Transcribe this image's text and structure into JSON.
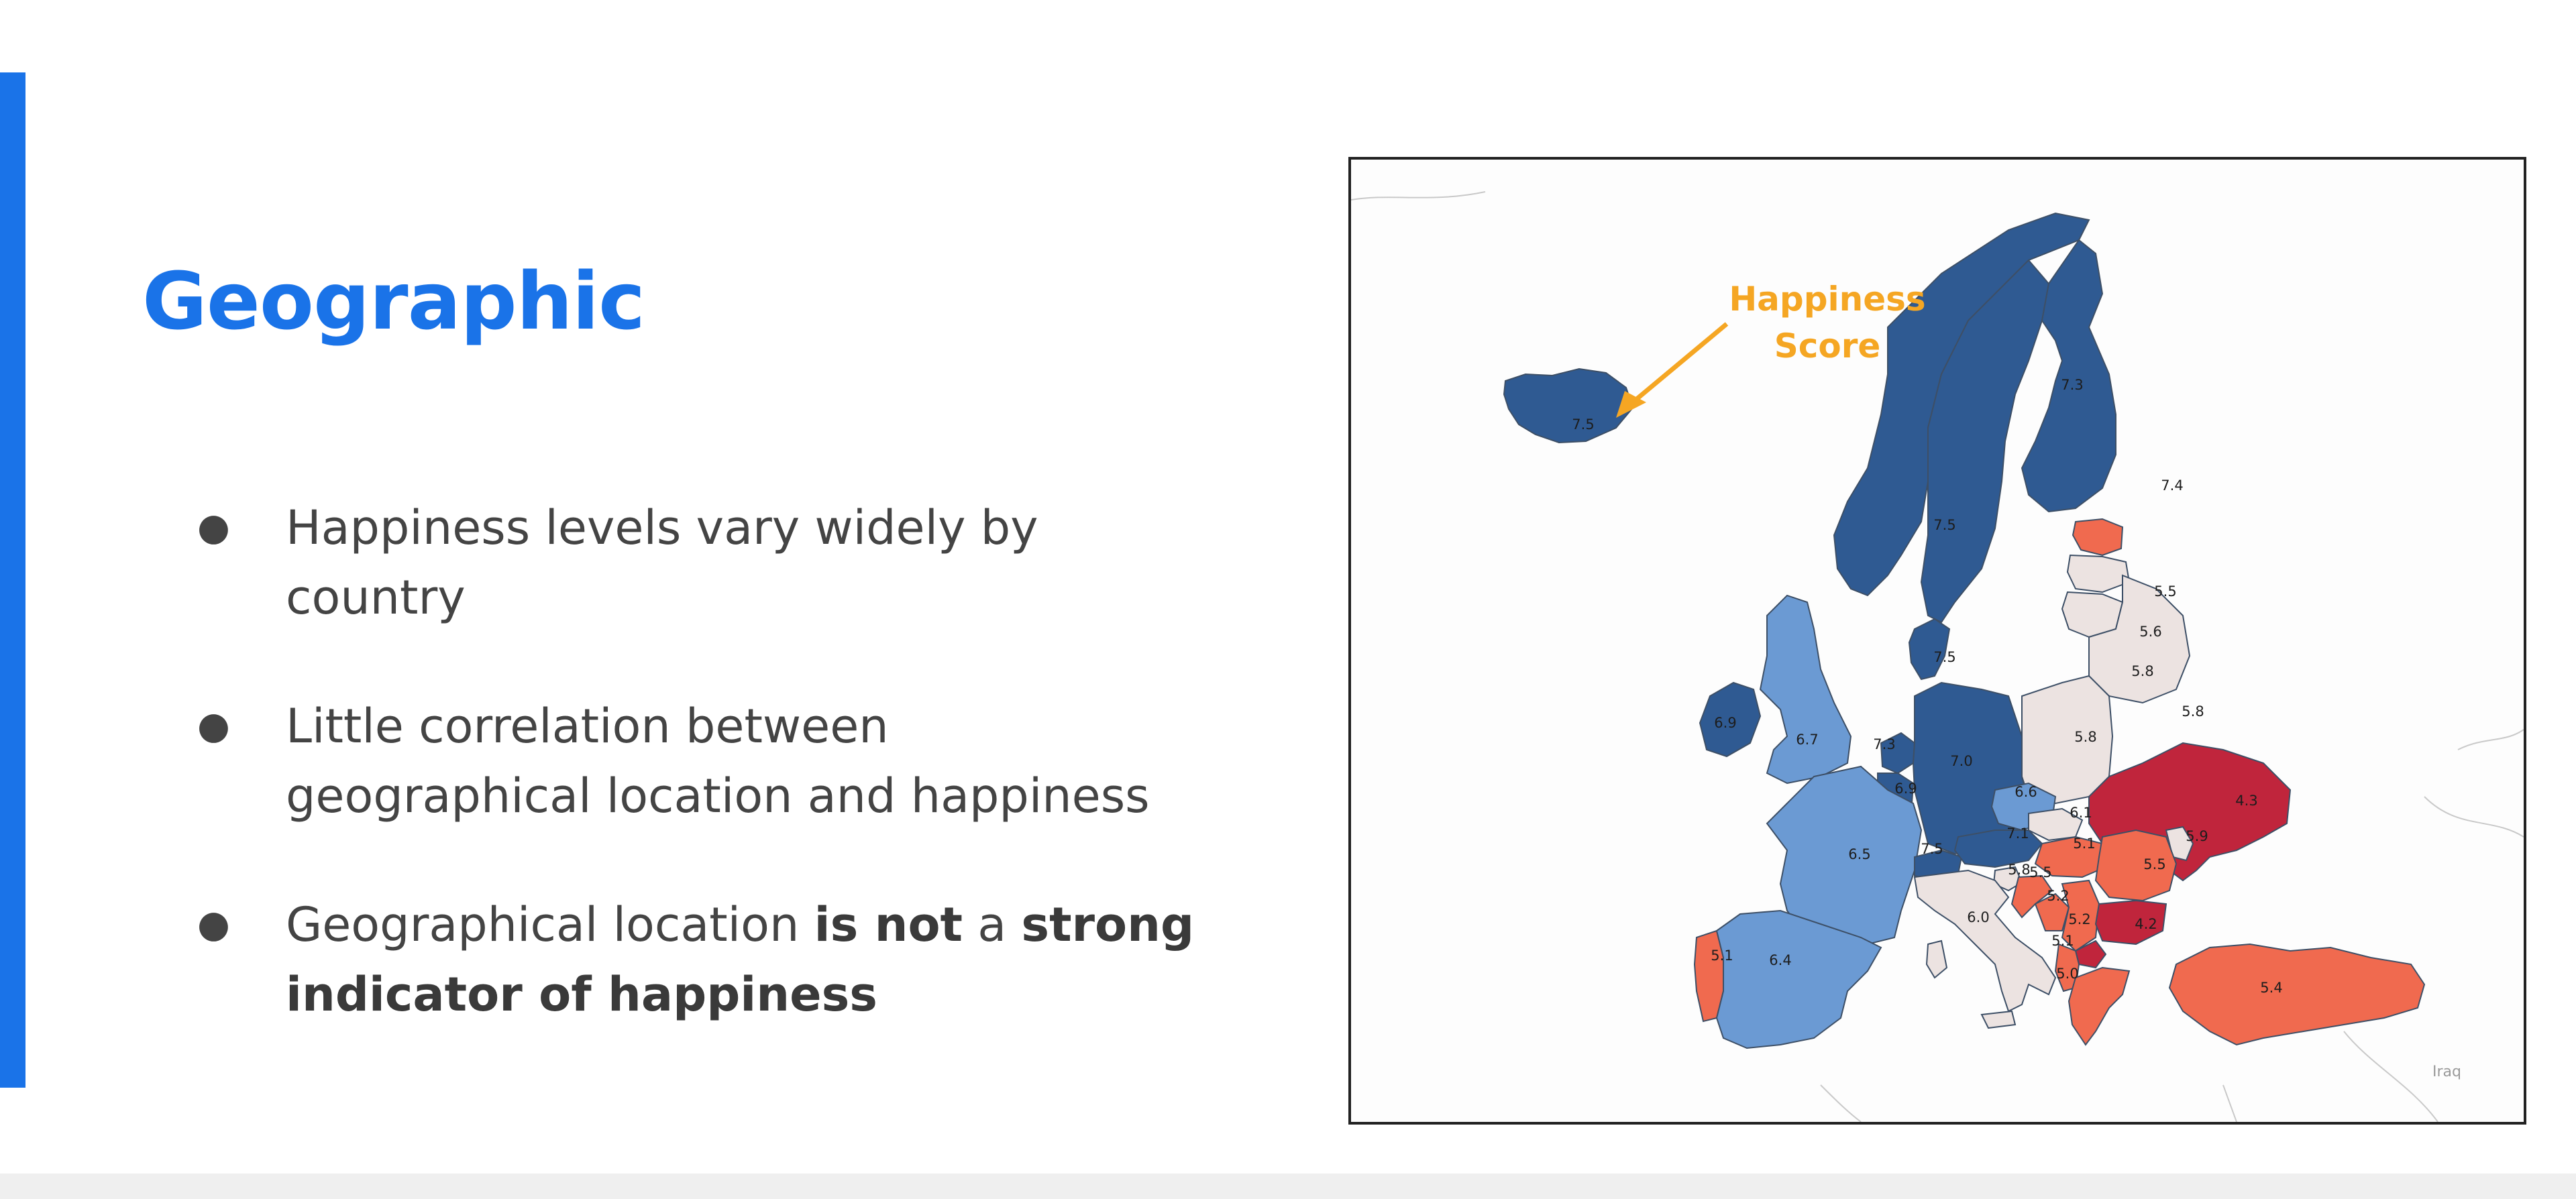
{
  "slide": {
    "title": "Geographic",
    "bullets": [
      {
        "text": "Happiness levels vary widely by country"
      },
      {
        "text": "Little correlation between geographical location and happiness"
      },
      {
        "text_plain": "Geographical location ",
        "text_bold_1": "is not",
        "text_mid": " a ",
        "text_bold_2": "strong indicator of happiness"
      }
    ],
    "bullet_glyph": "●"
  },
  "map": {
    "annotation_line1": "Happiness",
    "annotation_line2": "Score",
    "bg_label_iraq": "Iraq",
    "colors": {
      "dark_blue": "#2f5a92",
      "mid_blue": "#6b9ad3",
      "neutral": "#ece3e1",
      "light_red": "#f06a4f",
      "dark_red": "#c0253c",
      "accent": "#1a73e8",
      "annotation": "#f5a623"
    },
    "scores": {
      "iceland": "7.5",
      "sweden": "7.3",
      "finland": "7.4",
      "norway": "7.5",
      "estonia": "5.5",
      "latvia": "5.6",
      "lithuania": "5.8",
      "belarus": "5.8",
      "denmark": "7.5",
      "ireland": "6.9",
      "uk": "6.7",
      "netherlands": "7.3",
      "germany": "7.0",
      "poland": "5.8",
      "belgium": "6.9",
      "czechia": "6.6",
      "ukraine": "4.3",
      "france": "6.5",
      "switzerland": "7.5",
      "austria": "7.1",
      "slovakia": "6.1",
      "moldova": "5.9",
      "hungary": "5.1",
      "romania": "5.5",
      "italy": "6.0",
      "slovenia": "5.8",
      "croatia": "5.5",
      "bosnia": "5.2",
      "serbia": "5.2",
      "bulgaria": "4.2",
      "macedonia": "5.1",
      "albania": "5.0",
      "portugal": "5.1",
      "spain": "6.4",
      "turkey": "5.4"
    }
  }
}
